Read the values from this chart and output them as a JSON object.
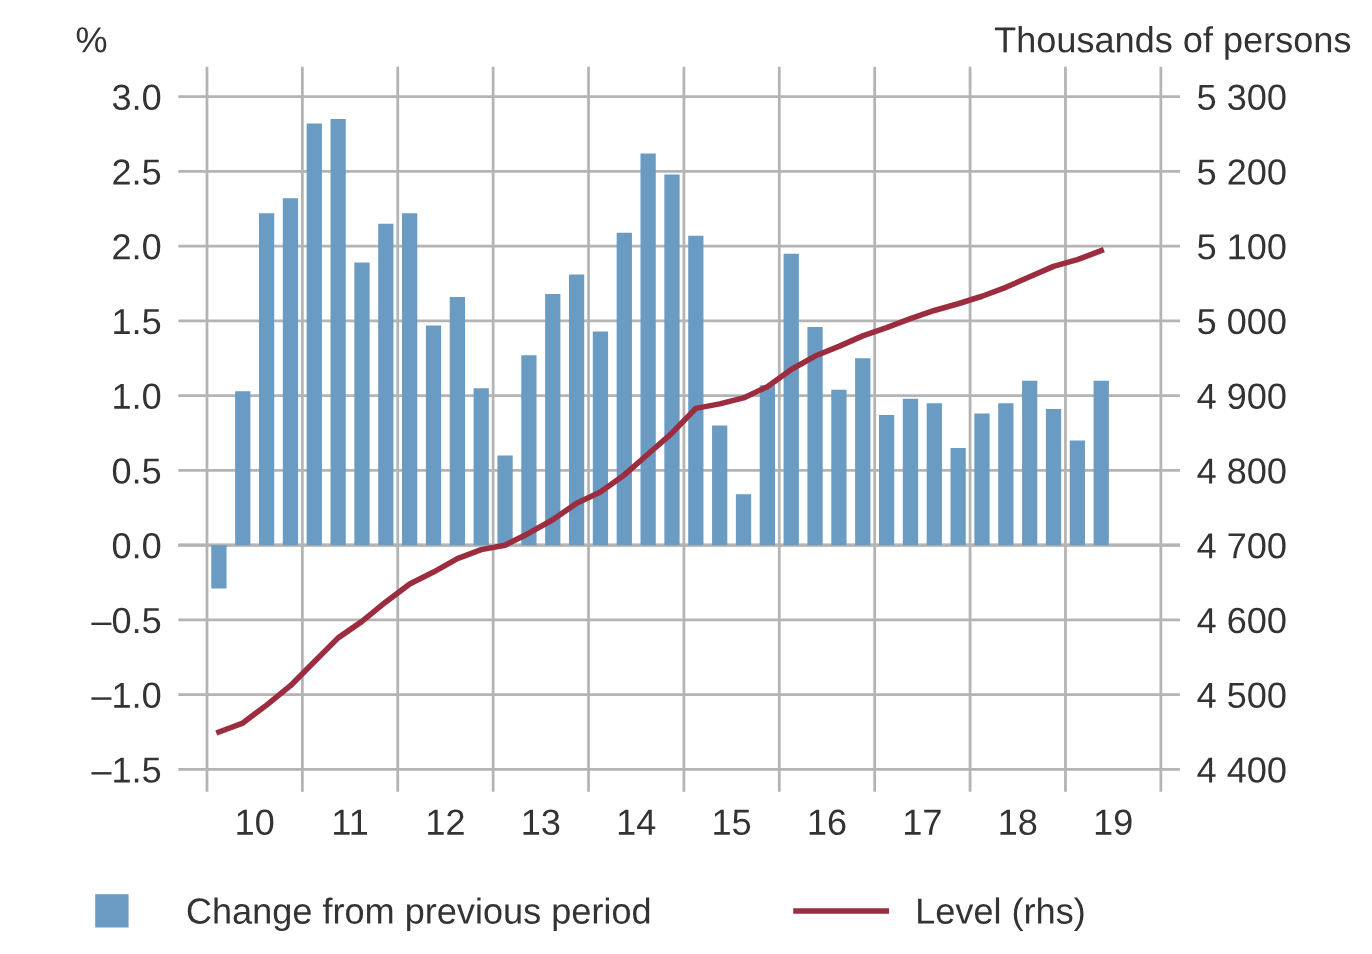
{
  "chart_data": {
    "type": "bar",
    "ylabel": "%",
    "y2label": "Thousands of persons",
    "x": [
      10.125,
      10.375,
      10.625,
      10.875,
      11.125,
      11.375,
      11.625,
      11.875,
      12.125,
      12.375,
      12.625,
      12.875,
      13.125,
      13.375,
      13.625,
      13.875,
      14.125,
      14.375,
      14.625,
      14.875,
      15.125,
      15.375,
      15.625,
      15.875,
      16.125,
      16.375,
      16.625,
      16.875,
      17.125,
      17.375,
      17.625,
      17.875,
      18.125,
      18.375,
      18.625,
      18.875,
      19.125,
      19.375
    ],
    "series": [
      {
        "name": "Change from previous period",
        "color": "#6a9bc3",
        "values": [
          -0.29,
          1.03,
          2.22,
          2.32,
          2.82,
          2.85,
          1.89,
          2.15,
          2.22,
          1.47,
          1.66,
          1.05,
          0.6,
          1.27,
          1.68,
          1.81,
          1.43,
          2.09,
          2.62,
          2.48,
          2.07,
          0.8,
          0.34,
          1.07,
          1.95,
          1.46,
          1.04,
          1.25,
          0.87,
          0.98,
          0.95,
          0.65,
          0.88,
          0.95,
          1.1,
          0.91,
          0.7,
          1.1
        ]
      },
      {
        "name": "Level (rhs)",
        "type": "line",
        "axis": "y2",
        "color": "#9b2d3f",
        "values": [
          4450,
          4462,
          4486,
          4512,
          4544,
          4576,
          4598,
          4624,
          4648,
          4664,
          4682,
          4694,
          4700,
          4716,
          4734,
          4756,
          4771,
          4794,
          4822,
          4850,
          4883,
          4889,
          4897,
          4912,
          4935,
          4953,
          4966,
          4980,
          4991,
          5003,
          5014,
          5023,
          5033,
          5045,
          5059,
          5073,
          5082,
          5094
        ]
      }
    ],
    "xlim": [
      9.7,
      20.2
    ],
    "xticks": [
      {
        "value": 10,
        "label": null
      },
      {
        "value": 11,
        "label": null
      },
      {
        "value": 12,
        "label": null
      },
      {
        "value": 13,
        "label": null
      },
      {
        "value": 14,
        "label": null
      },
      {
        "value": 15,
        "label": null
      },
      {
        "value": 16,
        "label": null
      },
      {
        "value": 17,
        "label": null
      },
      {
        "value": 18,
        "label": null
      },
      {
        "value": 19,
        "label": null
      },
      {
        "value": 20,
        "label": null
      },
      {
        "value": 10.5,
        "label": "10"
      },
      {
        "value": 11.5,
        "label": "11"
      },
      {
        "value": 12.5,
        "label": "12"
      },
      {
        "value": 13.5,
        "label": "13"
      },
      {
        "value": 14.5,
        "label": "14"
      },
      {
        "value": 15.5,
        "label": "15"
      },
      {
        "value": 16.5,
        "label": "16"
      },
      {
        "value": 17.5,
        "label": "17"
      },
      {
        "value": 18.5,
        "label": "18"
      },
      {
        "value": 19.5,
        "label": "19"
      }
    ],
    "ylim": [
      -1.65,
      3.2
    ],
    "yticks": [
      {
        "value": -1.5,
        "label": "–1.5"
      },
      {
        "value": -1.0,
        "label": "–1.0"
      },
      {
        "value": -0.5,
        "label": "–0.5"
      },
      {
        "value": 0.0,
        "label": "0.0"
      },
      {
        "value": 0.5,
        "label": "0.5"
      },
      {
        "value": 1.0,
        "label": "1.0"
      },
      {
        "value": 1.5,
        "label": "1.5"
      },
      {
        "value": 2.0,
        "label": "2.0"
      },
      {
        "value": 2.5,
        "label": "2.5"
      },
      {
        "value": 3.0,
        "label": "3.0"
      }
    ],
    "y2lim": [
      4370,
      5340
    ],
    "y2ticks": [
      {
        "value": 4400,
        "label": "4 400"
      },
      {
        "value": 4500,
        "label": "4 500"
      },
      {
        "value": 4600,
        "label": "4 600"
      },
      {
        "value": 4700,
        "label": "4 700"
      },
      {
        "value": 4800,
        "label": "4 800"
      },
      {
        "value": 4900,
        "label": "4 900"
      },
      {
        "value": 5000,
        "label": "5 000"
      },
      {
        "value": 5100,
        "label": "5 100"
      },
      {
        "value": 5200,
        "label": "5 200"
      },
      {
        "value": 5300,
        "label": "5 300"
      }
    ],
    "grid": true,
    "legend": "bottom"
  }
}
